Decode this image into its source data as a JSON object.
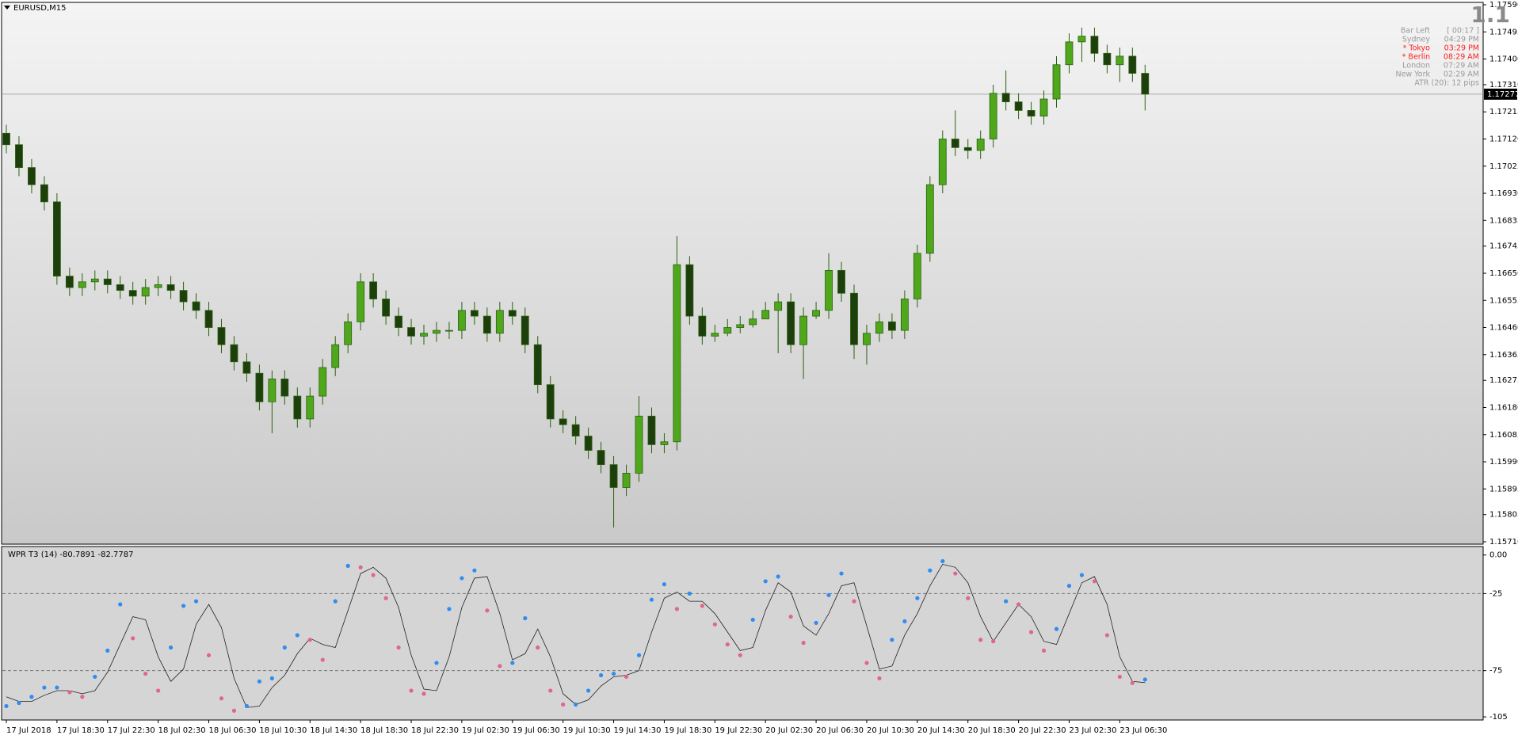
{
  "chart_data": [
    {
      "type": "candlestick",
      "title": "EURUSD,M15",
      "categories": [
        "17 Jul 2018",
        null,
        null,
        null,
        "17 Jul 18:30",
        null,
        null,
        null,
        "17 Jul 22:30",
        null,
        null,
        null,
        "18 Jul 02:30",
        null,
        null,
        null,
        "18 Jul 06:30",
        null,
        null,
        null,
        "18 Jul 10:30",
        null,
        null,
        null,
        "18 Jul 14:30",
        null,
        null,
        null,
        "18 Jul 18:30",
        null,
        null,
        null,
        "18 Jul 22:30",
        null,
        null,
        null,
        "19 Jul 02:30",
        null,
        null,
        null,
        "19 Jul 06:30",
        null,
        null,
        null,
        "19 Jul 10:30",
        null,
        null,
        null,
        "19 Jul 14:30",
        null,
        null,
        null,
        "19 Jul 18:30",
        null,
        null,
        null,
        "19 Jul 22:30",
        null,
        null,
        null,
        "20 Jul 02:30",
        null,
        null,
        null,
        "20 Jul 06:30",
        null,
        null,
        null,
        "20 Jul 10:30",
        null,
        null,
        null,
        "20 Jul 14:30",
        null,
        null,
        null,
        "20 Jul 18:30",
        null,
        null,
        null,
        "20 Jul 22:30",
        null,
        null,
        null,
        "23 Jul 02:30",
        null,
        null,
        null,
        "23 Jul 06:30",
        null,
        null
      ],
      "open": [
        1.1714,
        1.171,
        1.1702,
        1.1696,
        1.169,
        1.1664,
        1.166,
        1.1662,
        1.1663,
        1.1661,
        1.1659,
        1.1657,
        1.166,
        1.1661,
        1.1659,
        1.1655,
        1.1652,
        1.1646,
        1.164,
        1.1634,
        1.163,
        1.162,
        1.1628,
        1.1622,
        1.1614,
        1.1622,
        1.1632,
        1.164,
        1.1648,
        1.1662,
        1.1656,
        1.165,
        1.1646,
        1.1643,
        1.1644,
        1.1645,
        1.1645,
        1.1652,
        1.165,
        1.1644,
        1.1652,
        1.165,
        1.164,
        1.1626,
        1.1614,
        1.1612,
        1.1608,
        1.1603,
        1.1598,
        1.159,
        1.1595,
        1.1615,
        1.1605,
        1.1606,
        1.1668,
        1.165,
        1.1643,
        1.1644,
        1.1646,
        1.1647,
        1.1649,
        1.1652,
        1.1655,
        1.164,
        1.165,
        1.1652,
        1.1666,
        1.1658,
        1.164,
        1.1644,
        1.1648,
        1.1645,
        1.1656,
        1.1672,
        1.1696,
        1.1712,
        1.1709,
        1.1708,
        1.1712,
        1.1728,
        1.1725,
        1.1722,
        1.172,
        1.1726,
        1.1738,
        1.1746,
        1.1748,
        1.1742,
        1.1738,
        1.1741,
        1.1735
      ],
      "high": [
        1.1717,
        1.1713,
        1.1705,
        1.1699,
        1.1693,
        1.1667,
        1.1665,
        1.1666,
        1.1666,
        1.1664,
        1.1662,
        1.1663,
        1.1664,
        1.1664,
        1.1662,
        1.1658,
        1.1655,
        1.1649,
        1.1643,
        1.1637,
        1.1633,
        1.1631,
        1.1631,
        1.1625,
        1.1625,
        1.1635,
        1.1643,
        1.1651,
        1.1665,
        1.1665,
        1.1659,
        1.1653,
        1.1649,
        1.1647,
        1.1648,
        1.1648,
        1.1655,
        1.1655,
        1.1653,
        1.1655,
        1.1655,
        1.1653,
        1.1643,
        1.1629,
        1.1617,
        1.1615,
        1.1611,
        1.1606,
        1.1601,
        1.1598,
        1.1622,
        1.1618,
        1.1609,
        1.1678,
        1.1671,
        1.1653,
        1.1647,
        1.1649,
        1.165,
        1.1652,
        1.1655,
        1.1658,
        1.1658,
        1.1653,
        1.1655,
        1.1672,
        1.1669,
        1.1661,
        1.1647,
        1.1651,
        1.1651,
        1.1659,
        1.1675,
        1.1699,
        1.1715,
        1.1722,
        1.1712,
        1.1715,
        1.1731,
        1.1736,
        1.1728,
        1.1725,
        1.1729,
        1.1741,
        1.1749,
        1.1751,
        1.1751,
        1.1745,
        1.1744,
        1.1744,
        1.1738
      ],
      "low": [
        1.1707,
        1.1699,
        1.1693,
        1.1687,
        1.1661,
        1.1657,
        1.1657,
        1.1659,
        1.1658,
        1.1656,
        1.1654,
        1.1654,
        1.1657,
        1.1656,
        1.1652,
        1.1649,
        1.1643,
        1.1637,
        1.1631,
        1.1627,
        1.1617,
        1.1609,
        1.1619,
        1.1611,
        1.1611,
        1.1619,
        1.1629,
        1.1637,
        1.1645,
        1.1653,
        1.1647,
        1.1643,
        1.164,
        1.164,
        1.1641,
        1.1642,
        1.1642,
        1.1647,
        1.1641,
        1.1641,
        1.1647,
        1.1637,
        1.1623,
        1.1611,
        1.1609,
        1.1605,
        1.16,
        1.1595,
        1.1576,
        1.1587,
        1.1592,
        1.1602,
        1.1602,
        1.1603,
        1.1647,
        1.164,
        1.1641,
        1.1643,
        1.1644,
        1.1646,
        1.1649,
        1.1637,
        1.1637,
        1.1628,
        1.1649,
        1.1649,
        1.1655,
        1.1635,
        1.1633,
        1.1641,
        1.1642,
        1.1642,
        1.1653,
        1.1669,
        1.1693,
        1.1706,
        1.1705,
        1.1705,
        1.1709,
        1.1722,
        1.1719,
        1.1717,
        1.1717,
        1.1723,
        1.1735,
        1.1739,
        1.1739,
        1.1735,
        1.1732,
        1.1732,
        1.1722
      ],
      "close": [
        1.171,
        1.1702,
        1.1696,
        1.169,
        1.1664,
        1.166,
        1.1662,
        1.1663,
        1.1661,
        1.1659,
        1.1657,
        1.166,
        1.1661,
        1.1659,
        1.1655,
        1.1652,
        1.1646,
        1.164,
        1.1634,
        1.163,
        1.162,
        1.1628,
        1.1622,
        1.1614,
        1.1622,
        1.1632,
        1.164,
        1.1648,
        1.1662,
        1.1656,
        1.165,
        1.1646,
        1.1643,
        1.1644,
        1.1645,
        1.1645,
        1.1652,
        1.165,
        1.1644,
        1.1652,
        1.165,
        1.164,
        1.1626,
        1.1614,
        1.1612,
        1.1608,
        1.1603,
        1.1598,
        1.159,
        1.1595,
        1.1615,
        1.1605,
        1.1606,
        1.1668,
        1.165,
        1.1643,
        1.1644,
        1.1646,
        1.1647,
        1.1649,
        1.1652,
        1.1655,
        1.164,
        1.165,
        1.1652,
        1.1666,
        1.1658,
        1.164,
        1.1644,
        1.1648,
        1.1645,
        1.1656,
        1.1672,
        1.1696,
        1.1712,
        1.1709,
        1.1708,
        1.1712,
        1.1728,
        1.1725,
        1.1722,
        1.172,
        1.1726,
        1.1738,
        1.1746,
        1.1748,
        1.1742,
        1.1738,
        1.1741,
        1.1735,
        1.17277
      ],
      "up_color": "#4fa81c",
      "down_color": "#1d3f0c",
      "wick_color": "#2c6010",
      "current_price": 1.17277,
      "price_line_color": "#a8a8a8",
      "ylim": [
        1.1571,
        1.1759
      ],
      "yticks": [
        {
          "value": 1.1759,
          "label": "1.17590"
        },
        1.17495,
        {
          "value": 1.174,
          "label": "1.17400"
        },
        {
          "value": 1.1731,
          "label": "1.17310"
        },
        1.17215,
        {
          "value": 1.1712,
          "label": "1.17120"
        },
        1.17025,
        {
          "value": 1.1693,
          "label": "1.16930"
        },
        1.16835,
        1.16745,
        {
          "value": 1.1665,
          "label": "1.16650"
        },
        1.16555,
        {
          "value": 1.1646,
          "label": "1.16460"
        },
        1.16365,
        1.16275,
        {
          "value": 1.1618,
          "label": "1.16180"
        },
        1.16085,
        {
          "value": 1.1599,
          "label": "1.15990"
        },
        1.15895,
        1.15805,
        {
          "value": 1.1571,
          "label": "1.15710"
        }
      ]
    },
    {
      "type": "indicator",
      "title": "WPR T3 (14) -80.7891 -82.7787",
      "wpr": {
        "values": [
          -98,
          -96,
          -92,
          -86,
          -86,
          -89,
          -92,
          -79,
          -62,
          -32,
          -54,
          -77,
          -88,
          -60,
          -33,
          -30,
          -65,
          -93,
          -101,
          -98,
          -82,
          -80,
          -60,
          -52,
          -55,
          -68,
          -30,
          -7,
          -8,
          -13,
          -28,
          -60,
          -88,
          -90,
          -70,
          -35,
          -15,
          -10,
          -36,
          -72,
          -70,
          -41,
          -60,
          -88,
          -97,
          -97,
          -88,
          -78,
          -77,
          -79,
          -65,
          -29,
          -19,
          -35,
          -25,
          -33,
          -45,
          -58,
          -65,
          -42,
          -17,
          -14,
          -40,
          -57,
          -44,
          -26,
          -12,
          -30,
          -70,
          -80,
          -55,
          -43,
          -28,
          -10,
          -4,
          -12,
          -28,
          -55,
          -56,
          -30,
          -32,
          -50,
          -62,
          -48,
          -20,
          -13,
          -17,
          -52,
          -79,
          -83,
          -80.7891
        ],
        "up_color": "#2f8cf0",
        "down_color": "#e0658f"
      },
      "signal": {
        "values": [
          -92,
          -95,
          -95,
          -91,
          -88,
          -88,
          -90,
          -88,
          -76,
          -58,
          -40,
          -42,
          -66,
          -82,
          -74,
          -45,
          -32,
          -47,
          -80,
          -99,
          -98,
          -86,
          -78,
          -64,
          -54,
          -58,
          -60,
          -36,
          -12,
          -8,
          -15,
          -34,
          -65,
          -87,
          -88,
          -66,
          -34,
          -15,
          -14,
          -38,
          -68,
          -64,
          -48,
          -66,
          -90,
          -97,
          -94,
          -85,
          -79,
          -78,
          -75,
          -50,
          -28,
          -24,
          -30,
          -30,
          -38,
          -50,
          -62,
          -60,
          -36,
          -18,
          -24,
          -46,
          -52,
          -38,
          -20,
          -18,
          -46,
          -74,
          -72,
          -52,
          -38,
          -20,
          -6,
          -8,
          -18,
          -40,
          -56,
          -44,
          -32,
          -40,
          -56,
          -58,
          -38,
          -18,
          -14,
          -32,
          -66,
          -82,
          -82.7787
        ],
        "color": "#222222"
      },
      "levels": [
        -25,
        -75
      ],
      "ylim": [
        -106,
        5
      ],
      "yticks": [
        {
          "value": 0,
          "label": "0.00"
        },
        -25,
        -75,
        -105
      ]
    }
  ],
  "info": {
    "big": "1.1",
    "rows": [
      {
        "label": "Bar Left",
        "value": "[ 00:17 ]",
        "color": "#9a9a9a"
      },
      {
        "label": "Sydney",
        "value": "04:29 PM",
        "color": "#9a9a9a"
      },
      {
        "label": "* Tokyo",
        "value": "03:29 PM",
        "color": "#ff2020"
      },
      {
        "label": "* Berlin",
        "value": "08:29 AM",
        "color": "#ff2020"
      },
      {
        "label": "London",
        "value": "07:29 AM",
        "color": "#9a9a9a"
      },
      {
        "label": "New York",
        "value": "02:29 AM",
        "color": "#9a9a9a"
      }
    ],
    "atr": "ATR (20): 12 pips"
  }
}
